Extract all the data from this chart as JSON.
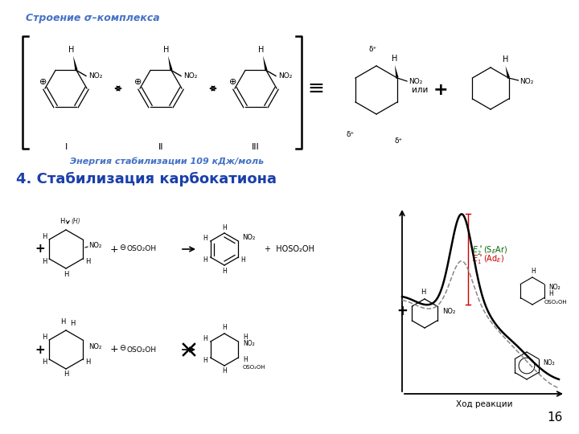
{
  "title_top": "Строение σ–комплекса",
  "energy_label": "Энергия стабилизации 109 кДж/моль",
  "section4_title": "4. Стабилизация карбокатиона",
  "xaxis_label": "Ход реакции",
  "page_num": "16",
  "title_color": "#4472c4",
  "energy_color": "#4472c4",
  "section4_color": "#1a3faa",
  "E1_label": "$\\mathit{E}_1^\\circ(\\mathrm{Ad}_E)$",
  "E1_color": "#cc0000",
  "E2_label": "$\\mathit{E}_2^\\circ(\\mathrm{S}_E\\mathrm{Ar})$",
  "E2_color": "#006600",
  "bg_color": "#ffffff"
}
